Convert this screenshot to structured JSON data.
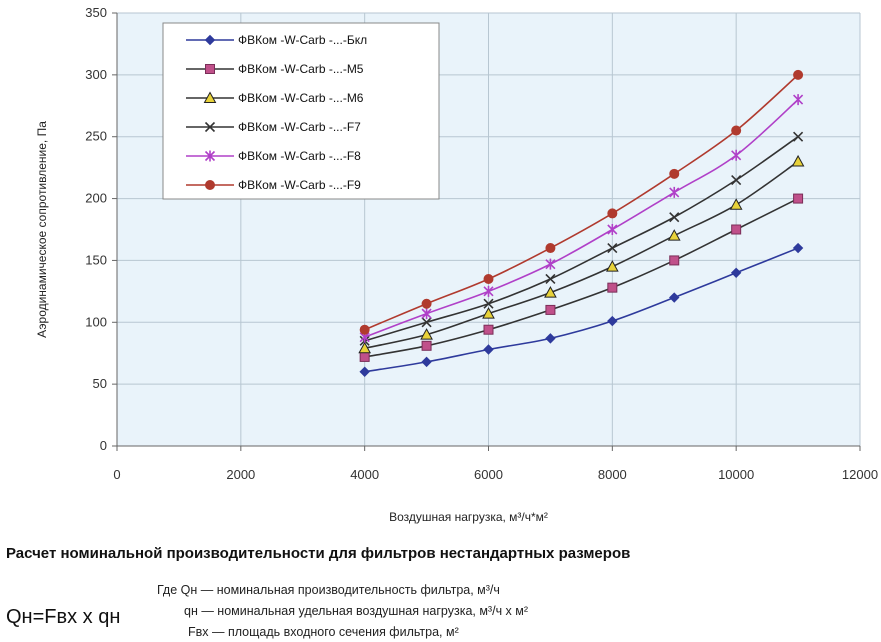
{
  "chart_data": {
    "type": "line",
    "xlabel": "Воздушная нагрузка, м³/ч*м²",
    "ylabel": "Аэродинамическое сопротивление, Па",
    "xlim": [
      0,
      12000
    ],
    "ylim": [
      0,
      350
    ],
    "xticks": [
      "0",
      "2000",
      "4000",
      "6000",
      "8000",
      "10000",
      "12000"
    ],
    "yticks": [
      "0",
      "50",
      "100",
      "150",
      "200",
      "250",
      "300",
      "350"
    ],
    "grid": true,
    "legend_position": "top-left",
    "x": [
      4000,
      5000,
      6000,
      7000,
      8000,
      9000,
      10000,
      11000
    ],
    "series": [
      {
        "name": "ФВКом -W-Carb -...-Бкл",
        "color": "#2e3a9c",
        "marker": "diamond",
        "values": [
          60,
          68,
          78,
          87,
          101,
          120,
          140,
          160
        ]
      },
      {
        "name": "ФВКом -W-Carb -...-M5",
        "color": "#c0508a",
        "marker": "square",
        "values": [
          72,
          81,
          94,
          110,
          128,
          150,
          175,
          200
        ]
      },
      {
        "name": "ФВКом -W-Carb -...-M6",
        "color": "#e8d23a",
        "marker": "triangle",
        "values": [
          79,
          90,
          107,
          124,
          145,
          170,
          195,
          230
        ]
      },
      {
        "name": "ФВКом -W-Carb -...-F7",
        "color": "#333333",
        "marker": "x",
        "values": [
          85,
          100,
          115,
          135,
          160,
          185,
          215,
          250
        ]
      },
      {
        "name": "ФВКом -W-Carb -...-F8",
        "color": "#b040c8",
        "marker": "star",
        "values": [
          88,
          107,
          125,
          147,
          175,
          205,
          235,
          280
        ]
      },
      {
        "name": "ФВКом -W-Carb -...-F9",
        "color": "#b03a2e",
        "marker": "circle",
        "values": [
          94,
          115,
          135,
          160,
          188,
          220,
          255,
          300
        ]
      }
    ]
  },
  "text": {
    "heading": "Расчет номинальной производительности для фильтров нестандартных размеров",
    "formula": "Qн=Fвх х qн",
    "def1": "Где Qн — номинальная производительность фильтра, м³/ч",
    "def2": "qн — номинальная удельная воздушная нагрузка, м³/ч х м²",
    "def3": "Fвх — площадь входного сечения фильтра, м²"
  },
  "colors": {
    "plot_background": "#e9f3fa",
    "grid": "#b7c6d1",
    "line": "#2a2e66"
  }
}
